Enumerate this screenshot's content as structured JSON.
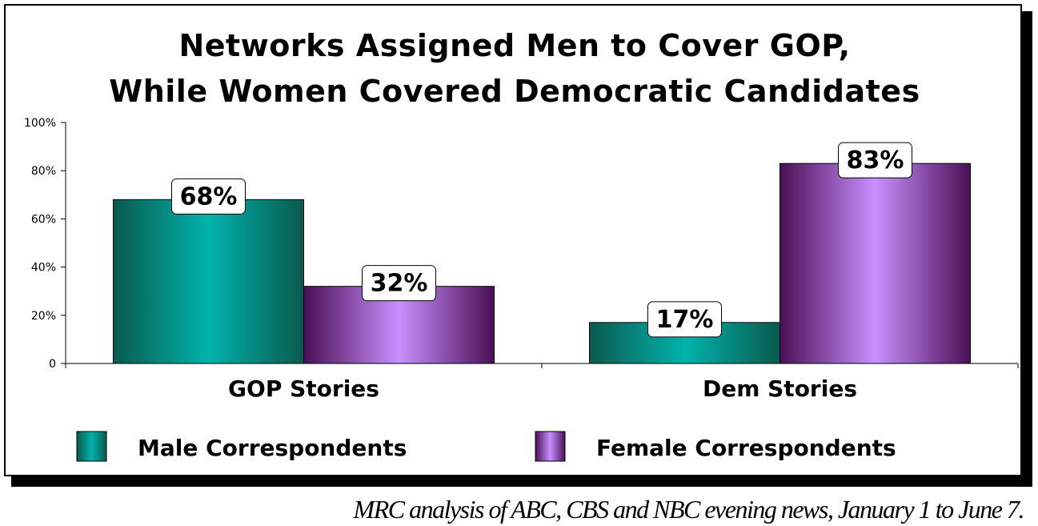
{
  "chart_data": {
    "type": "bar",
    "title_line1": "Networks Assigned Men to Cover GOP,",
    "title_line2": "While Women Covered Democratic Candidates",
    "categories": [
      "GOP Stories",
      "Dem Stories"
    ],
    "series": [
      {
        "name": "Male Correspondents",
        "values": [
          68,
          17
        ],
        "labels": [
          "68%",
          "17%"
        ]
      },
      {
        "name": "Female Correspondents",
        "values": [
          32,
          83
        ],
        "labels": [
          "32%",
          "83%"
        ]
      }
    ],
    "ylim": [
      0,
      100
    ],
    "yticks": [
      0,
      20,
      40,
      60,
      80,
      100
    ],
    "ytick_labels": [
      "0",
      "20%",
      "40%",
      "60%",
      "80%",
      "100%"
    ],
    "legend_position": "bottom",
    "grid": false
  },
  "colors": {
    "male_dark": "#0a5a4e",
    "male_light": "#00b3ac",
    "female_dark": "#4a0f55",
    "female_light": "#c890ff"
  },
  "caption": "MRC analysis of ABC, CBS and NBC evening news, January 1 to June 7."
}
